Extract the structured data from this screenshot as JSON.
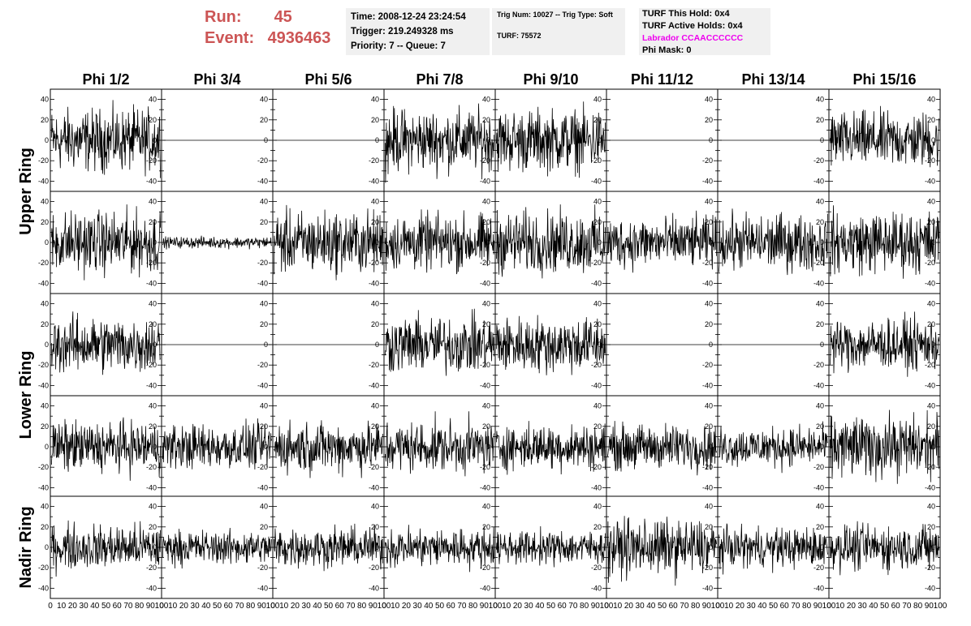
{
  "header": {
    "run_label": "Run:",
    "run_value": "45",
    "event_label": "Event:",
    "event_value": "4936463",
    "time": "Time: 2008-12-24 23:24:54",
    "trigger": "Trigger: 219.249328 ms",
    "priority": "Priority: 7 -- Queue: 7",
    "trig_num": "Trig Num: 10027 -- Trig Type: Soft",
    "turf": "TURF: 75572",
    "turf_this_hold": "TURF This Hold: 0x4",
    "turf_active_holds": "TURF Active Holds: 0x4",
    "labrador": "Labrador CCAACCCCCC",
    "phi_mask": "Phi Mask: 0"
  },
  "colors": {
    "run_text": "#cc5555",
    "labrador_text": "#ee00ee",
    "trace": "#000000",
    "info_bg": "#f0f0f0"
  },
  "chart_data": {
    "type": "line",
    "columns": [
      "Phi 1/2",
      "Phi 3/4",
      "Phi 5/6",
      "Phi 7/8",
      "Phi 9/10",
      "Phi 11/12",
      "Phi 13/14",
      "Phi 15/16"
    ],
    "ring_labels": [
      "Upper Ring",
      "Lower Ring",
      "Nadir Ring"
    ],
    "xlim": [
      0,
      100
    ],
    "ylim": [
      -50,
      50
    ],
    "x_ticks": [
      "0",
      "10",
      "20",
      "30",
      "40",
      "50",
      "60",
      "70",
      "80",
      "90",
      "100"
    ],
    "y_ticks": [
      "40",
      "20",
      "0",
      "-20",
      "-40"
    ],
    "panel_amplitudes": [
      [
        22,
        0,
        0,
        22,
        22,
        0,
        0,
        20
      ],
      [
        22,
        4,
        22,
        20,
        22,
        18,
        20,
        22
      ],
      [
        20,
        0,
        0,
        20,
        20,
        0,
        0,
        18
      ],
      [
        18,
        16,
        18,
        18,
        16,
        16,
        14,
        22
      ],
      [
        16,
        12,
        14,
        14,
        12,
        20,
        14,
        16
      ]
    ]
  }
}
